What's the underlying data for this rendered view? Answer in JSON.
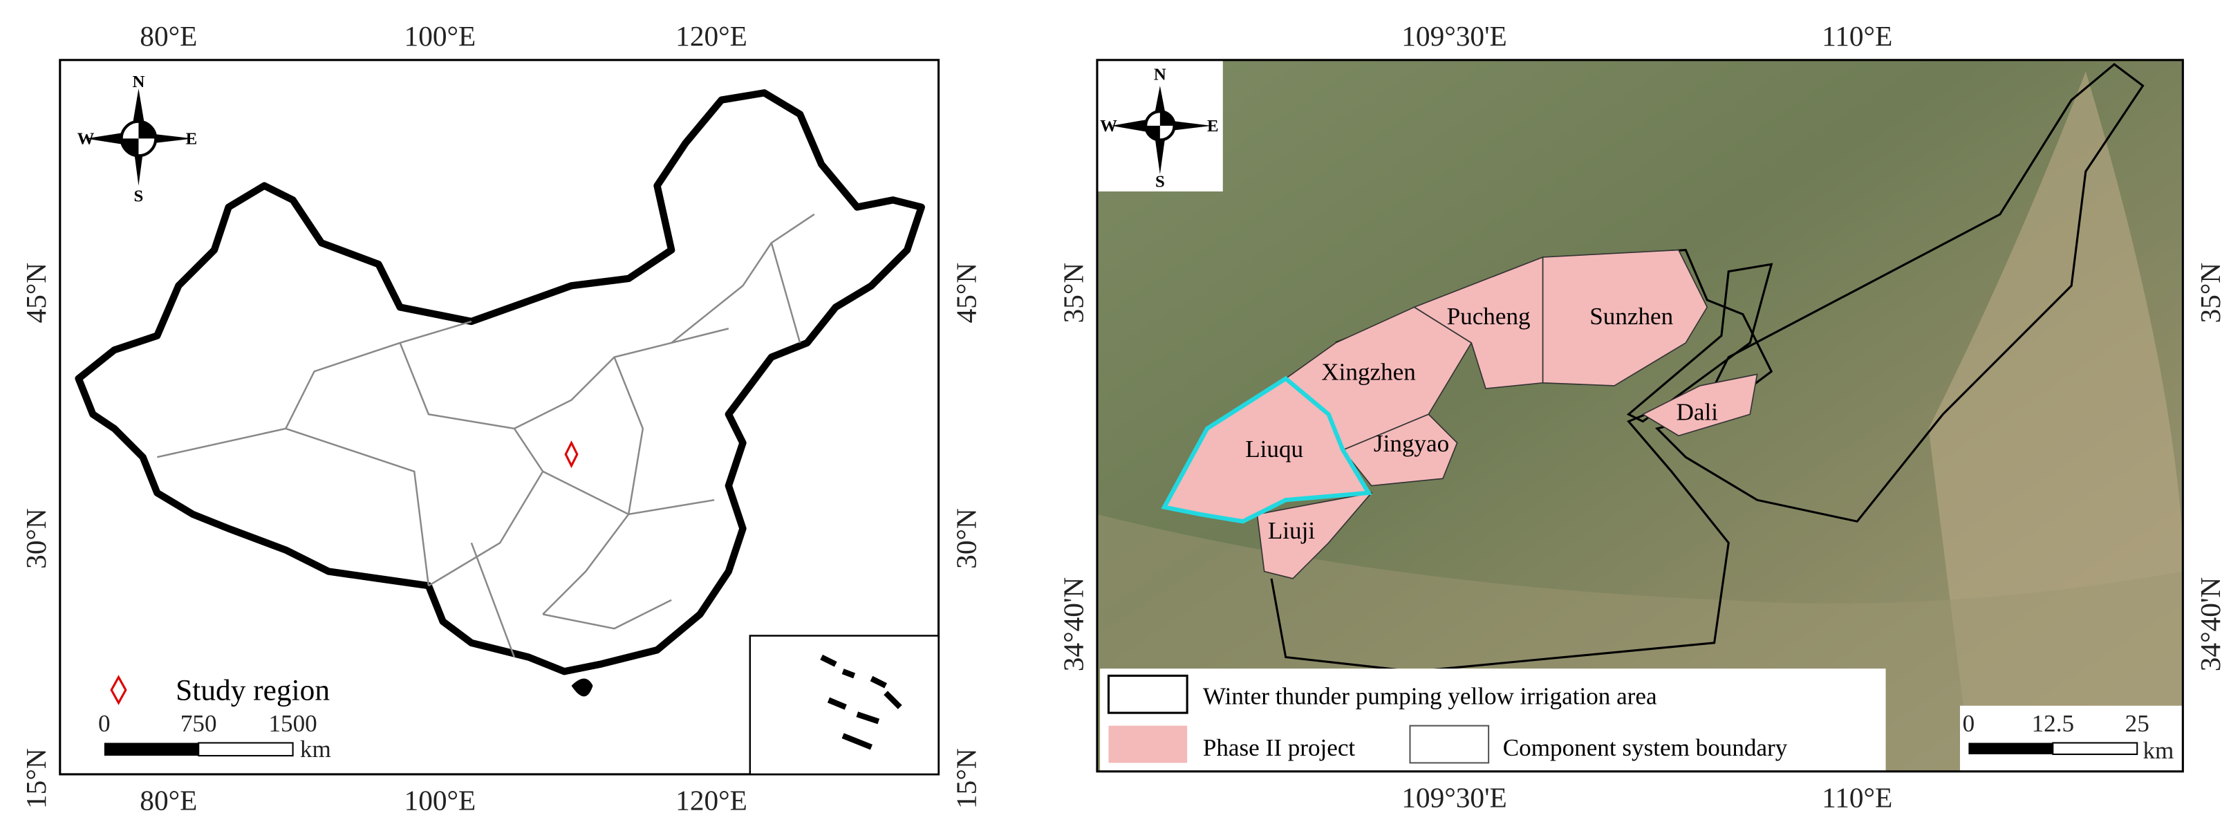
{
  "left_map": {
    "top_ticks": [
      "80°E",
      "100°E",
      "120°E"
    ],
    "side_ticks": [
      "45°N",
      "30°N",
      "15°N"
    ],
    "compass": {
      "n": "N",
      "s": "S",
      "w": "W",
      "e": "E"
    },
    "legend": "Study region",
    "scale": {
      "labels": [
        "0",
        "750",
        "1500"
      ],
      "unit": "km"
    }
  },
  "right_map": {
    "top_ticks": [
      "109°30'E",
      "110°E"
    ],
    "side_ticks": [
      "35°N",
      "34°40'N"
    ],
    "compass": {
      "n": "N",
      "s": "S",
      "w": "W",
      "e": "E"
    },
    "regions": [
      "Pucheng",
      "Sunzhen",
      "Xingzhen",
      "Dali",
      "Liuqu",
      "Jingyao",
      "Liuji"
    ],
    "legend": [
      "Winter thunder pumping yellow irrigation area",
      "Phase II project",
      "Component system boundary"
    ],
    "scale": {
      "labels": [
        "0",
        "12.5",
        "25"
      ],
      "unit": "km"
    }
  }
}
